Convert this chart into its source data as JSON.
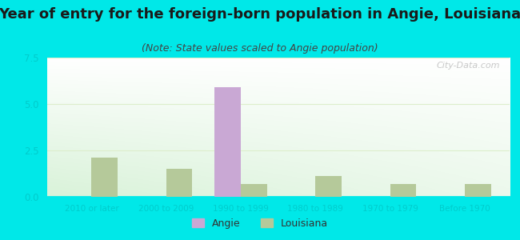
{
  "title": "Year of entry for the foreign-born population in Angie, Louisiana",
  "subtitle": "(Note: State values scaled to Angie population)",
  "categories": [
    "2010 or later",
    "2000 to 2009",
    "1990 to 1999",
    "1980 to 1989",
    "1970 to 1979",
    "Before 1970"
  ],
  "angie_values": [
    0,
    0,
    5.9,
    0,
    0,
    0
  ],
  "louisiana_values": [
    2.1,
    1.5,
    0.7,
    1.1,
    0.7,
    0.7
  ],
  "angie_color": "#c9a8d4",
  "louisiana_color": "#b5c99a",
  "background_outer": "#00e8e8",
  "ylim": [
    0,
    7.5
  ],
  "yticks": [
    0,
    2.5,
    5,
    7.5
  ],
  "title_fontsize": 13,
  "subtitle_fontsize": 9,
  "bar_width": 0.35,
  "legend_labels": [
    "Angie",
    "Louisiana"
  ],
  "watermark": "City-Data.com",
  "tick_color": "#00cccc",
  "grid_color": "#ddeecc"
}
